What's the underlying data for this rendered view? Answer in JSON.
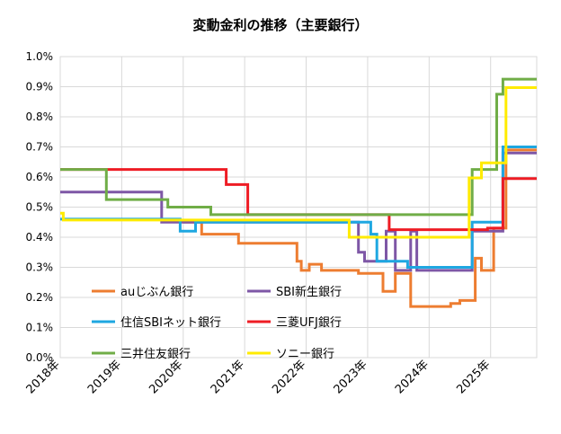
{
  "chart_data": {
    "type": "line",
    "title": "変動金利の推移（主要銀行）",
    "xlabel": "",
    "ylabel": "",
    "xlim": [
      2018.0,
      2025.75
    ],
    "ylim": [
      0,
      1.0
    ],
    "y_ticks": [
      {
        "value": 0.0,
        "label": "0.0%"
      },
      {
        "value": 0.1,
        "label": "0.1%"
      },
      {
        "value": 0.2,
        "label": "0.2%"
      },
      {
        "value": 0.3,
        "label": "0.3%"
      },
      {
        "value": 0.4,
        "label": "0.4%"
      },
      {
        "value": 0.5,
        "label": "0.5%"
      },
      {
        "value": 0.6,
        "label": "0.6%"
      },
      {
        "value": 0.7,
        "label": "0.7%"
      },
      {
        "value": 0.8,
        "label": "0.8%"
      },
      {
        "value": 0.9,
        "label": "0.9%"
      },
      {
        "value": 1.0,
        "label": "1.0%"
      }
    ],
    "x_ticks": [
      {
        "value": 2018,
        "label": "2018年"
      },
      {
        "value": 2019,
        "label": "2019年"
      },
      {
        "value": 2020,
        "label": "2020年"
      },
      {
        "value": 2021,
        "label": "2021年"
      },
      {
        "value": 2022,
        "label": "2022年"
      },
      {
        "value": 2023,
        "label": "2023年"
      },
      {
        "value": 2024,
        "label": "2024年"
      },
      {
        "value": 2025,
        "label": "2025年"
      }
    ],
    "grid": true,
    "legend": "inside-bottom-left, 2 columns",
    "series": [
      {
        "name": "auじぶん銀行",
        "color": "#ED7D31",
        "points": [
          [
            2020.0,
            0.45
          ],
          [
            2020.3,
            0.45
          ],
          [
            2020.3,
            0.41
          ],
          [
            2020.9,
            0.41
          ],
          [
            2020.9,
            0.38
          ],
          [
            2021.85,
            0.38
          ],
          [
            2021.85,
            0.32
          ],
          [
            2021.92,
            0.32
          ],
          [
            2021.92,
            0.29
          ],
          [
            2022.05,
            0.29
          ],
          [
            2022.05,
            0.31
          ],
          [
            2022.25,
            0.31
          ],
          [
            2022.25,
            0.29
          ],
          [
            2022.85,
            0.29
          ],
          [
            2022.85,
            0.28
          ],
          [
            2023.25,
            0.28
          ],
          [
            2023.25,
            0.22
          ],
          [
            2023.45,
            0.22
          ],
          [
            2023.45,
            0.28
          ],
          [
            2023.7,
            0.28
          ],
          [
            2023.7,
            0.17
          ],
          [
            2024.35,
            0.17
          ],
          [
            2024.35,
            0.18
          ],
          [
            2024.5,
            0.18
          ],
          [
            2024.5,
            0.19
          ],
          [
            2024.75,
            0.19
          ],
          [
            2024.75,
            0.33
          ],
          [
            2024.85,
            0.33
          ],
          [
            2024.85,
            0.29
          ],
          [
            2025.05,
            0.29
          ],
          [
            2025.05,
            0.43
          ],
          [
            2025.25,
            0.43
          ],
          [
            2025.25,
            0.69
          ],
          [
            2025.75,
            0.69
          ]
        ]
      },
      {
        "name": "SBI新生銀行",
        "color": "#7E57A6",
        "points": [
          [
            2018.0,
            0.55
          ],
          [
            2019.65,
            0.55
          ],
          [
            2019.65,
            0.45
          ],
          [
            2022.85,
            0.45
          ],
          [
            2022.85,
            0.35
          ],
          [
            2022.95,
            0.35
          ],
          [
            2022.95,
            0.32
          ],
          [
            2023.3,
            0.32
          ],
          [
            2023.3,
            0.42
          ],
          [
            2023.45,
            0.42
          ],
          [
            2023.45,
            0.29
          ],
          [
            2023.7,
            0.29
          ],
          [
            2023.7,
            0.42
          ],
          [
            2023.8,
            0.42
          ],
          [
            2023.8,
            0.29
          ],
          [
            2024.7,
            0.29
          ],
          [
            2024.7,
            0.42
          ],
          [
            2025.2,
            0.42
          ],
          [
            2025.2,
            0.68
          ],
          [
            2025.75,
            0.68
          ]
        ]
      },
      {
        "name": "住信SBIネット銀行",
        "color": "#1EA7E1",
        "points": [
          [
            2018.0,
            0.46
          ],
          [
            2019.95,
            0.46
          ],
          [
            2019.95,
            0.42
          ],
          [
            2020.2,
            0.42
          ],
          [
            2020.2,
            0.45
          ],
          [
            2023.05,
            0.45
          ],
          [
            2023.05,
            0.41
          ],
          [
            2023.15,
            0.41
          ],
          [
            2023.15,
            0.32
          ],
          [
            2023.65,
            0.32
          ],
          [
            2023.65,
            0.3
          ],
          [
            2024.7,
            0.3
          ],
          [
            2024.7,
            0.45
          ],
          [
            2025.2,
            0.45
          ],
          [
            2025.2,
            0.7
          ],
          [
            2025.75,
            0.7
          ]
        ]
      },
      {
        "name": "三菱UFJ銀行",
        "color": "#EE1C24",
        "points": [
          [
            2018.0,
            0.625
          ],
          [
            2020.7,
            0.625
          ],
          [
            2020.7,
            0.575
          ],
          [
            2021.05,
            0.575
          ],
          [
            2021.05,
            0.475
          ],
          [
            2023.35,
            0.475
          ],
          [
            2023.35,
            0.425
          ],
          [
            2024.95,
            0.425
          ],
          [
            2024.95,
            0.43
          ],
          [
            2025.2,
            0.43
          ],
          [
            2025.2,
            0.595
          ],
          [
            2025.75,
            0.595
          ]
        ]
      },
      {
        "name": "三井住友銀行",
        "color": "#70AD47",
        "points": [
          [
            2018.0,
            0.625
          ],
          [
            2018.75,
            0.625
          ],
          [
            2018.75,
            0.525
          ],
          [
            2019.75,
            0.525
          ],
          [
            2019.75,
            0.5
          ],
          [
            2020.45,
            0.5
          ],
          [
            2020.45,
            0.475
          ],
          [
            2024.7,
            0.475
          ],
          [
            2024.7,
            0.625
          ],
          [
            2024.95,
            0.625
          ],
          [
            2024.95,
            0.625
          ],
          [
            2025.1,
            0.625
          ],
          [
            2025.1,
            0.875
          ],
          [
            2025.2,
            0.875
          ],
          [
            2025.2,
            0.925
          ],
          [
            2025.75,
            0.925
          ]
        ]
      },
      {
        "name": "ソニー銀行",
        "color": "#FFEB00",
        "points": [
          [
            2018.0,
            0.48
          ],
          [
            2018.05,
            0.48
          ],
          [
            2018.05,
            0.457
          ],
          [
            2022.7,
            0.457
          ],
          [
            2022.7,
            0.4
          ],
          [
            2024.65,
            0.4
          ],
          [
            2024.65,
            0.597
          ],
          [
            2024.85,
            0.597
          ],
          [
            2024.85,
            0.647
          ],
          [
            2025.25,
            0.647
          ],
          [
            2025.25,
            0.897
          ],
          [
            2025.75,
            0.897
          ]
        ]
      }
    ]
  }
}
